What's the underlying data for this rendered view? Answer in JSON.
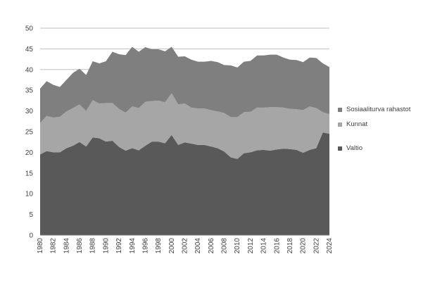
{
  "chart_data": {
    "type": "area",
    "stacked": true,
    "title": "",
    "xlabel": "",
    "ylabel": "",
    "ylim": [
      0,
      50
    ],
    "yticks": [
      0,
      5,
      10,
      15,
      20,
      25,
      30,
      35,
      40,
      45,
      50
    ],
    "grid": "horizontal",
    "legend_position": "right",
    "x": [
      1980,
      1981,
      1982,
      1983,
      1984,
      1985,
      1986,
      1987,
      1988,
      1989,
      1990,
      1991,
      1992,
      1993,
      1994,
      1995,
      1996,
      1997,
      1998,
      1999,
      2000,
      2001,
      2002,
      2003,
      2004,
      2005,
      2006,
      2007,
      2008,
      2009,
      2010,
      2011,
      2012,
      2013,
      2014,
      2015,
      2016,
      2017,
      2018,
      2019,
      2020,
      2021,
      2022,
      2023,
      2024
    ],
    "x_tick_labels": [
      "1980",
      "1982",
      "1984",
      "1986",
      "1988",
      "1990",
      "1992",
      "1994",
      "1996",
      "1998",
      "2000",
      "2002",
      "2004",
      "2006",
      "2008",
      "2010",
      "2012",
      "2014",
      "2016",
      "2018",
      "2020",
      "2022",
      "2024"
    ],
    "series": [
      {
        "name": "Valtio",
        "color": "#595959",
        "values": [
          19.5,
          20.3,
          20.0,
          20.0,
          21.0,
          21.6,
          22.5,
          21.4,
          23.6,
          23.4,
          22.6,
          22.8,
          21.3,
          20.4,
          21.0,
          20.5,
          21.6,
          22.6,
          22.6,
          22.2,
          24.2,
          21.8,
          22.4,
          22.1,
          21.8,
          21.8,
          21.4,
          21.0,
          20.2,
          18.8,
          18.4,
          19.8,
          20.0,
          20.5,
          20.6,
          20.4,
          20.7,
          20.9,
          20.8,
          20.6,
          19.9,
          20.6,
          21.0,
          24.8,
          24.5
        ]
      },
      {
        "name": "Kunnat",
        "color": "#a6a6a6",
        "values": [
          7.6,
          8.5,
          8.4,
          8.6,
          8.9,
          9.1,
          9.1,
          8.6,
          9.0,
          8.4,
          9.3,
          9.1,
          9.2,
          9.2,
          10.1,
          10.2,
          10.6,
          9.8,
          9.9,
          9.9,
          10.1,
          9.8,
          9.4,
          8.7,
          8.8,
          8.8,
          8.8,
          8.9,
          9.3,
          9.7,
          10.1,
          9.9,
          9.8,
          10.3,
          10.2,
          10.5,
          10.2,
          9.9,
          9.7,
          9.8,
          10.3,
          10.5,
          9.7,
          4.9,
          4.7
        ]
      },
      {
        "name": "Sosiaaliturva rahastot",
        "color": "#7f7f7f",
        "values": [
          8.3,
          8.4,
          7.9,
          7.2,
          7.6,
          8.5,
          8.6,
          8.7,
          9.4,
          9.7,
          10.1,
          12.4,
          13.2,
          13.9,
          14.4,
          13.6,
          13.2,
          12.5,
          12.4,
          12.3,
          11.2,
          11.5,
          11.4,
          11.6,
          11.3,
          11.3,
          11.9,
          11.9,
          11.6,
          12.5,
          12.0,
          12.2,
          12.3,
          12.6,
          12.6,
          12.7,
          12.7,
          12.1,
          11.9,
          11.9,
          11.6,
          11.8,
          12.1,
          11.8,
          11.4
        ]
      }
    ],
    "legend_order": [
      "Sosiaaliturva rahastot",
      "Kunnat",
      "Valtio"
    ]
  },
  "legend": {
    "items": [
      {
        "label": "Sosiaaliturva rahastot",
        "color": "#7f7f7f"
      },
      {
        "label": "Kunnat",
        "color": "#a6a6a6"
      },
      {
        "label": "Valtio",
        "color": "#595959"
      }
    ]
  }
}
